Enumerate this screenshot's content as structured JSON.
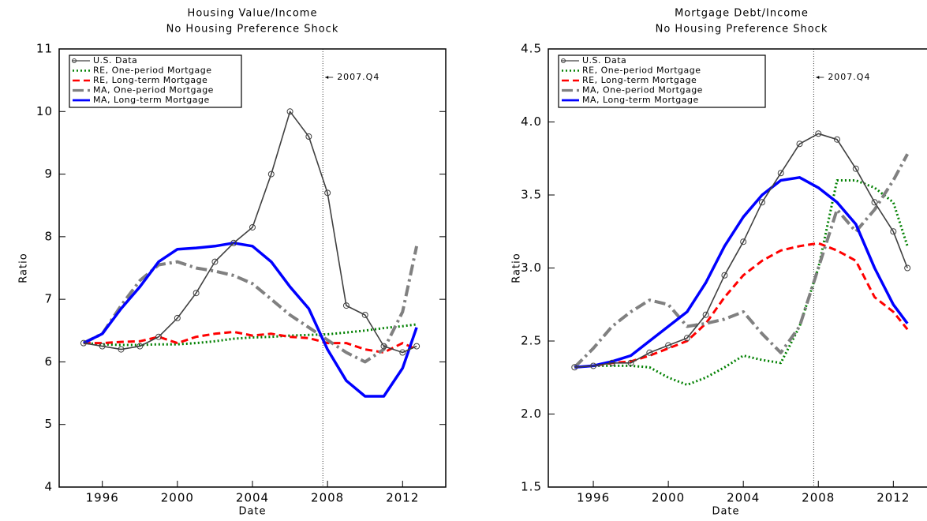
{
  "chart_data": [
    {
      "type": "line",
      "title": "Housing Value/Income",
      "subtitle": "No Housing Preference Shock",
      "x_label": "Date",
      "y_label": "Ratio",
      "annotation": "2007.Q4",
      "vline_x": 2007.75,
      "x": [
        1995,
        1996,
        1997,
        1998,
        1999,
        2000,
        2001,
        2002,
        2003,
        2004,
        2005,
        2006,
        2007,
        2008,
        2009,
        2010,
        2011,
        2012,
        2012.75
      ],
      "xlim": [
        1993.7,
        2014.3
      ],
      "xticks": [
        1996,
        2000,
        2004,
        2008,
        2012
      ],
      "ylim": [
        4,
        11
      ],
      "yticks": [
        4,
        5,
        6,
        7,
        8,
        9,
        10,
        11
      ],
      "legend": "upper-left",
      "series": [
        {
          "name": "U.S. Data",
          "color": "#404040",
          "values": [
            6.3,
            6.25,
            6.2,
            6.25,
            6.4,
            6.7,
            7.1,
            7.6,
            7.9,
            8.15,
            9.0,
            10.0,
            9.6,
            8.7,
            6.9,
            6.75,
            6.25,
            6.15,
            6.25
          ]
        },
        {
          "name": "RE, One-period Mortgage",
          "color": "#008000",
          "values": [
            6.3,
            6.28,
            6.27,
            6.27,
            6.28,
            6.28,
            6.3,
            6.33,
            6.37,
            6.39,
            6.4,
            6.42,
            6.43,
            6.44,
            6.47,
            6.5,
            6.54,
            6.57,
            6.6
          ]
        },
        {
          "name": "RE, Long-term Mortgage",
          "color": "#ff0000",
          "values": [
            6.3,
            6.3,
            6.32,
            6.33,
            6.4,
            6.3,
            6.4,
            6.45,
            6.48,
            6.42,
            6.45,
            6.4,
            6.38,
            6.3,
            6.3,
            6.2,
            6.15,
            6.3,
            6.2
          ]
        },
        {
          "name": "MA, One-period Mortgage",
          "color": "#808080",
          "values": [
            6.3,
            6.45,
            6.9,
            7.3,
            7.55,
            7.6,
            7.5,
            7.45,
            7.38,
            7.25,
            7.0,
            6.75,
            6.55,
            6.35,
            6.15,
            6.0,
            6.2,
            6.8,
            7.85
          ]
        },
        {
          "name": "MA, Long-term Mortgage",
          "color": "#0000ff",
          "values": [
            6.3,
            6.45,
            6.85,
            7.2,
            7.6,
            7.8,
            7.82,
            7.85,
            7.9,
            7.85,
            7.6,
            7.2,
            6.85,
            6.2,
            5.7,
            5.45,
            5.45,
            5.9,
            6.55
          ]
        }
      ]
    },
    {
      "type": "line",
      "title": "Mortgage Debt/Income",
      "subtitle": "No Housing Preference Shock",
      "x_label": "Date",
      "y_label": "Ratio",
      "annotation": "2007.Q4",
      "vline_x": 2007.75,
      "x": [
        1995,
        1996,
        1997,
        1998,
        1999,
        2000,
        2001,
        2002,
        2003,
        2004,
        2005,
        2006,
        2007,
        2008,
        2009,
        2010,
        2011,
        2012,
        2012.75
      ],
      "xlim": [
        1993.6,
        2014.3
      ],
      "xticks": [
        1996,
        2000,
        2004,
        2008,
        2012
      ],
      "ylim": [
        1.5,
        4.5
      ],
      "yticks": [
        1.5,
        {
          "value": 2,
          "label": "2.0"
        },
        2.5,
        {
          "value": 3,
          "label": "3.0"
        },
        3.5,
        {
          "value": 4,
          "label": "4.0"
        },
        4.5
      ],
      "legend": "upper-left",
      "series": [
        {
          "name": "U.S. Data",
          "color": "#404040",
          "values": [
            2.32,
            2.33,
            2.35,
            2.35,
            2.42,
            2.47,
            2.52,
            2.68,
            2.95,
            3.18,
            3.45,
            3.65,
            3.85,
            3.92,
            3.88,
            3.68,
            3.45,
            3.25,
            3.0
          ]
        },
        {
          "name": "RE, One-period Mortgage",
          "color": "#008000",
          "values": [
            2.32,
            2.33,
            2.33,
            2.33,
            2.32,
            2.25,
            2.2,
            2.25,
            2.32,
            2.4,
            2.37,
            2.35,
            2.6,
            3.0,
            3.6,
            3.6,
            3.55,
            3.45,
            3.15
          ]
        },
        {
          "name": "RE, Long-term Mortgage",
          "color": "#ff0000",
          "values": [
            2.32,
            2.33,
            2.35,
            2.36,
            2.4,
            2.45,
            2.5,
            2.62,
            2.8,
            2.95,
            3.05,
            3.12,
            3.15,
            3.17,
            3.12,
            3.05,
            2.8,
            2.7,
            2.58
          ]
        },
        {
          "name": "MA, One-period Mortgage",
          "color": "#808080",
          "values": [
            2.32,
            2.45,
            2.6,
            2.7,
            2.78,
            2.75,
            2.6,
            2.62,
            2.65,
            2.7,
            2.55,
            2.42,
            2.6,
            3.0,
            3.4,
            3.25,
            3.4,
            3.6,
            3.78
          ]
        },
        {
          "name": "MA, Long-term Mortgage",
          "color": "#0000ff",
          "values": [
            2.32,
            2.33,
            2.36,
            2.4,
            2.5,
            2.6,
            2.7,
            2.9,
            3.15,
            3.35,
            3.5,
            3.6,
            3.62,
            3.55,
            3.45,
            3.3,
            3.0,
            2.75,
            2.62
          ]
        }
      ]
    }
  ]
}
